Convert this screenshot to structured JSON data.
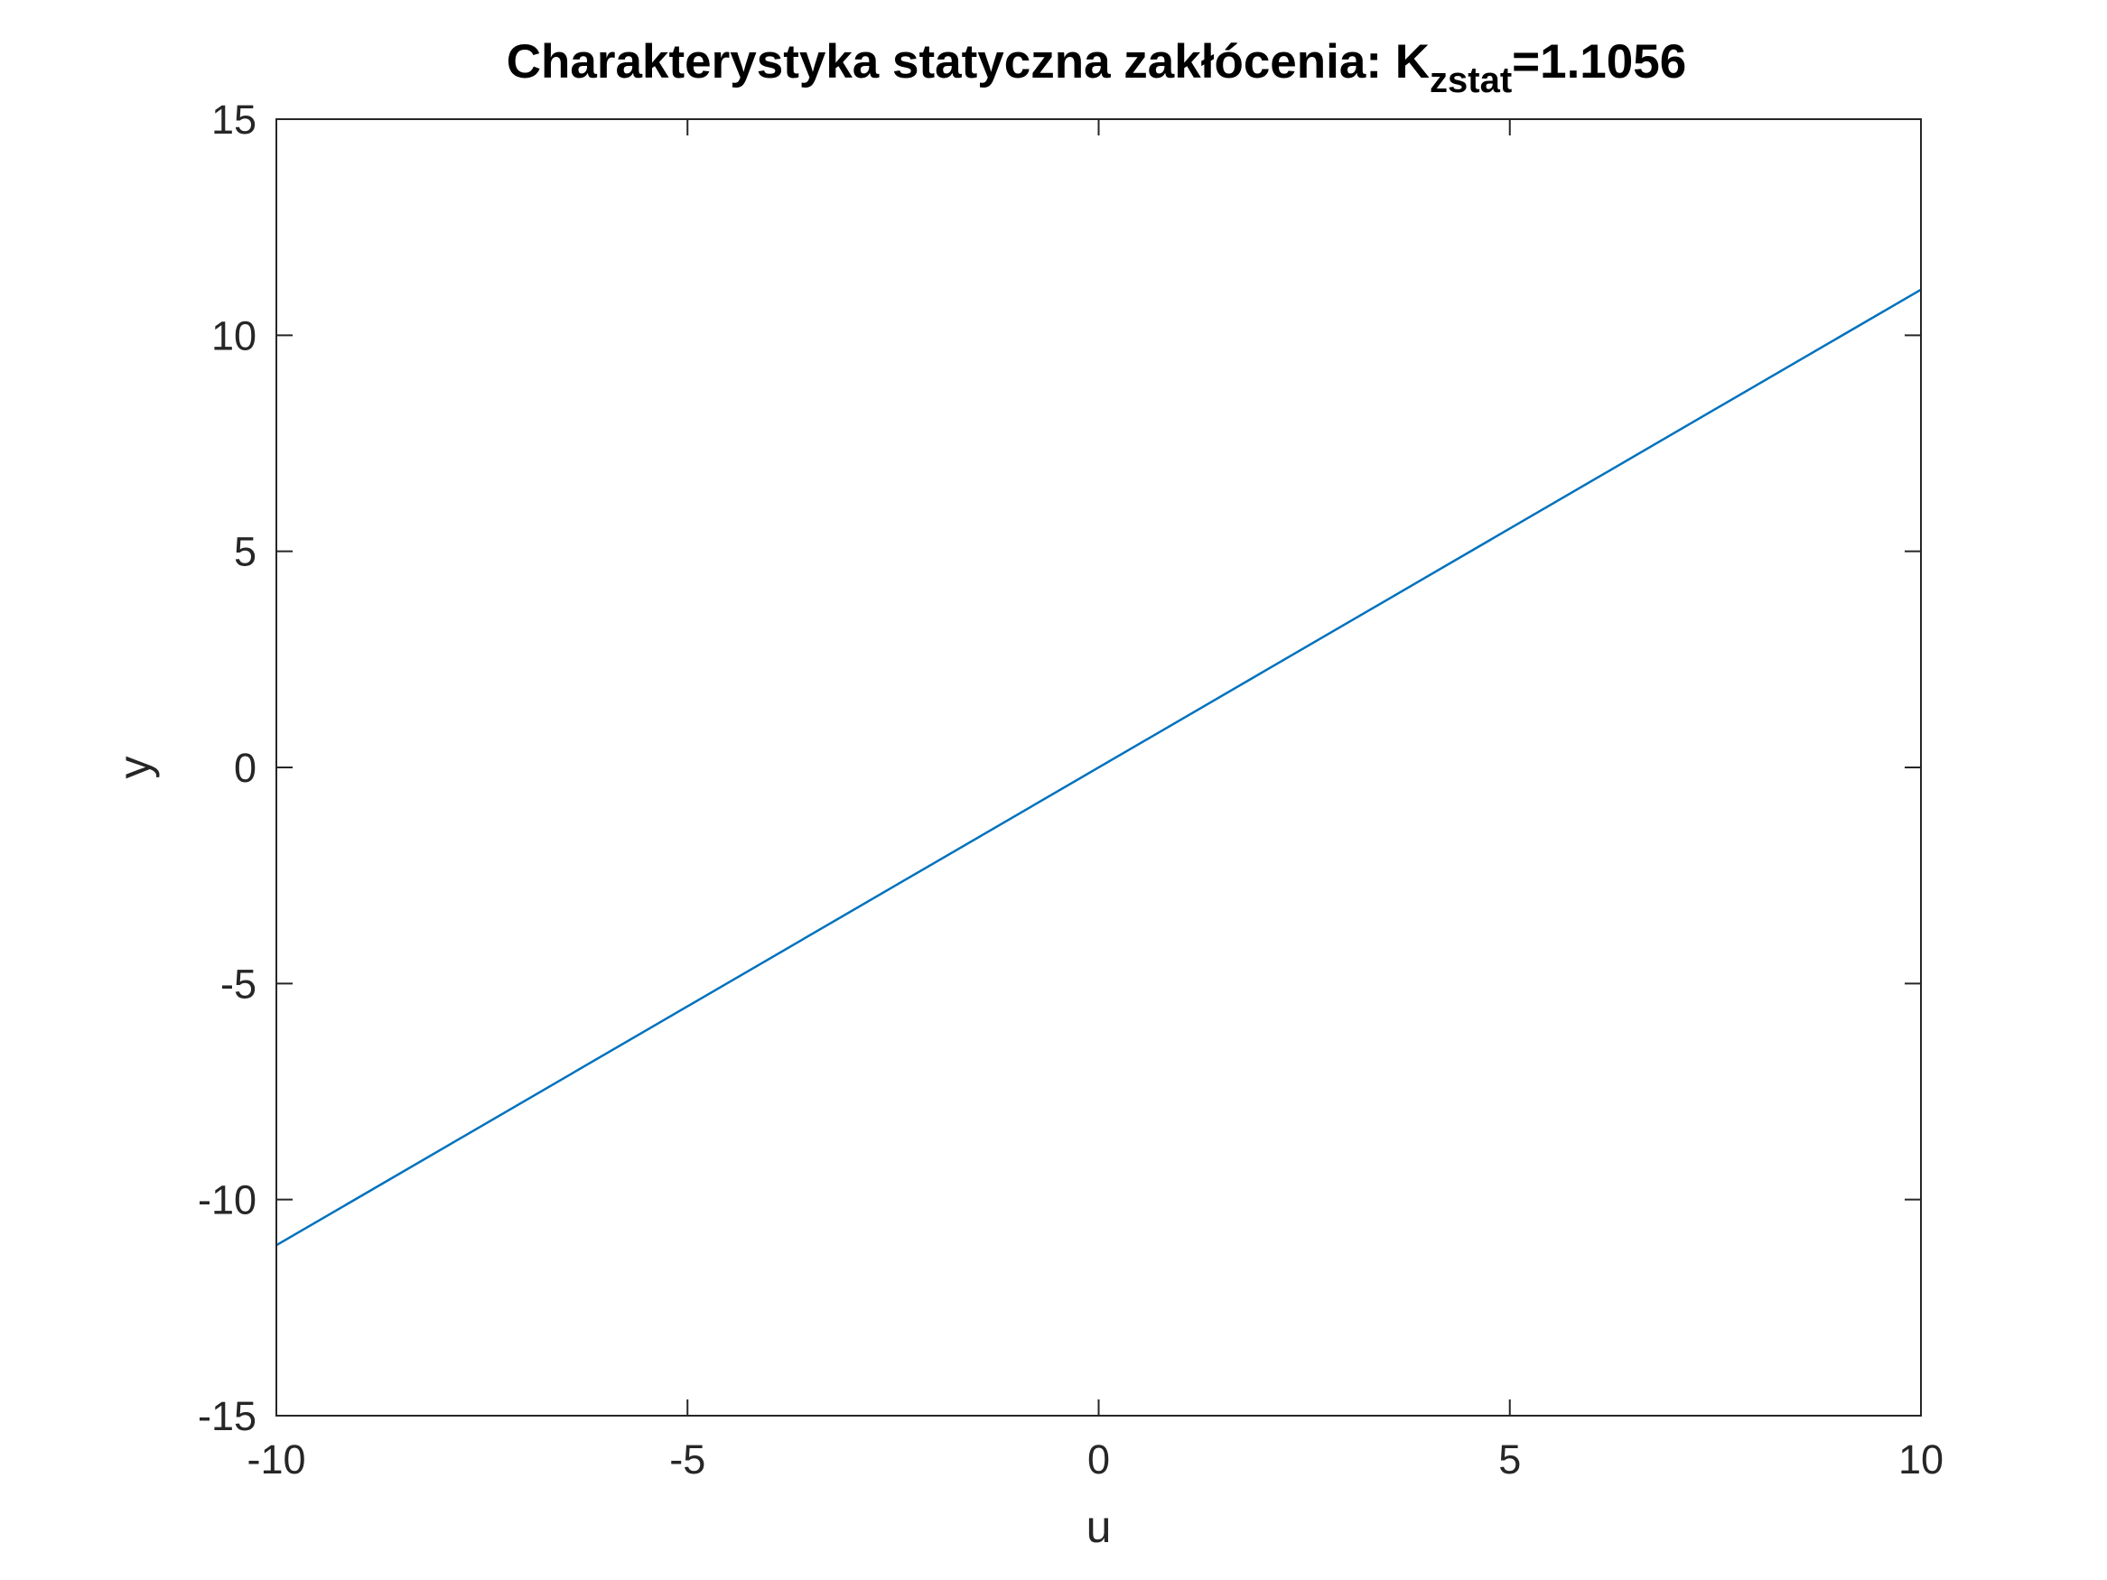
{
  "chart_data": {
    "type": "line",
    "title": {
      "main": "Charakterystyka statyczna zakłócenia:  K",
      "subscript": "zstat",
      "suffix": "=1.1056"
    },
    "xlabel": "u",
    "ylabel": "y",
    "xlim": [
      -10,
      10
    ],
    "ylim": [
      -15,
      15
    ],
    "xticks": [
      -10,
      -5,
      0,
      5,
      10
    ],
    "yticks": [
      -15,
      -10,
      -5,
      0,
      5,
      10,
      15
    ],
    "xtick_labels": [
      "-10",
      "-5",
      "0",
      "5",
      "10"
    ],
    "ytick_labels": [
      "-15",
      "-10",
      "-5",
      "0",
      "5",
      "10",
      "15"
    ],
    "grid": false,
    "series": [
      {
        "x": [
          -10,
          10
        ],
        "y": [
          -11.056,
          11.056
        ],
        "color": "#0072BD"
      }
    ],
    "colors": {
      "axes": "#262626",
      "line": "#0072BD"
    }
  }
}
